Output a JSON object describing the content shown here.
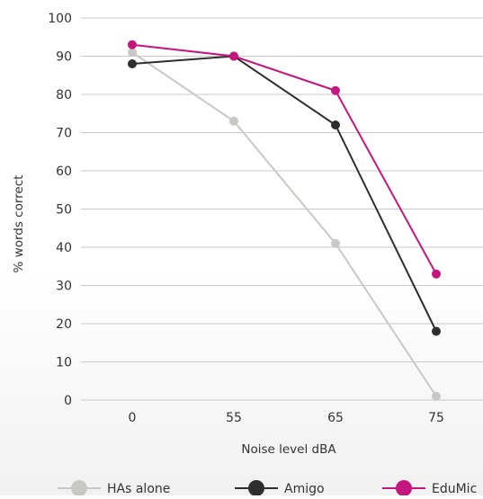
{
  "chart_data": {
    "type": "line",
    "categories": [
      "0",
      "55",
      "65",
      "75"
    ],
    "xlabel": "Noise level dBA",
    "ylabel": "% words correct",
    "ylim": [
      0,
      100
    ],
    "yticks": [
      "0",
      "10",
      "20",
      "30",
      "40",
      "50",
      "60",
      "70",
      "80",
      "90",
      "100"
    ],
    "grid": true,
    "legend_position": "bottom",
    "series": [
      {
        "name": "HAs alone",
        "color": "#c8c8c4",
        "values": [
          91,
          73,
          41,
          1
        ]
      },
      {
        "name": "Amigo",
        "color": "#2e2e2e",
        "values": [
          88,
          90,
          72,
          18
        ]
      },
      {
        "name": "EduMic",
        "color": "#c4167f",
        "values": [
          93,
          90,
          81,
          33
        ]
      }
    ]
  }
}
